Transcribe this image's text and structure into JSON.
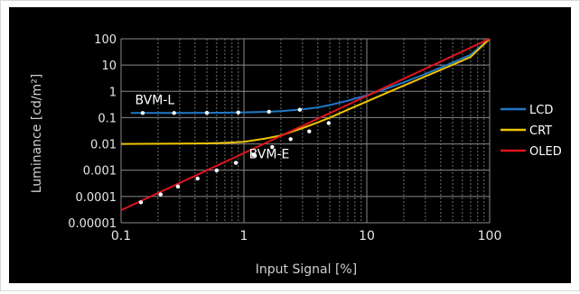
{
  "chart_data": {
    "type": "line",
    "title": "",
    "xlabel": "Input Signal [%]",
    "ylabel": "Luminance [cd/m²]",
    "x_scale": "log",
    "y_scale": "log",
    "xlim": [
      0.1,
      100
    ],
    "ylim": [
      1e-05,
      100
    ],
    "x_ticks": [
      "0.1",
      "1",
      "10",
      "100"
    ],
    "y_ticks": [
      "0.00001",
      "0.0001",
      "0.001",
      "0.01",
      "0.1",
      "1",
      "10",
      "100"
    ],
    "grid": true,
    "legend_position": "right",
    "background_color": "#000000",
    "gridline_color": "#8a8a8a",
    "series": [
      {
        "name": "LCD",
        "color": "#1f78c8",
        "x": [
          0.12,
          0.2,
          0.3,
          0.5,
          0.7,
          1,
          1.5,
          2,
          3,
          4,
          5,
          7,
          10,
          15,
          20,
          30,
          50,
          70,
          100
        ],
        "y": [
          0.15,
          0.15,
          0.151,
          0.152,
          0.154,
          0.158,
          0.166,
          0.176,
          0.205,
          0.245,
          0.3,
          0.44,
          0.71,
          1.35,
          2.2,
          4.6,
          12.5,
          24.5,
          100
        ]
      },
      {
        "name": "CRT",
        "color": "#f0c400",
        "x": [
          0.1,
          0.2,
          0.3,
          0.5,
          0.7,
          1,
          1.5,
          2,
          3,
          4,
          5,
          7,
          10,
          15,
          20,
          30,
          50,
          70,
          100
        ],
        "y": [
          0.01,
          0.0101,
          0.0102,
          0.0105,
          0.011,
          0.012,
          0.016,
          0.021,
          0.04,
          0.066,
          0.1,
          0.2,
          0.41,
          0.93,
          1.65,
          3.7,
          10.3,
          20.2,
          100
        ]
      },
      {
        "name": "OLED",
        "color": "#e0141e",
        "x": [
          0.1,
          100
        ],
        "y": [
          3e-05,
          100
        ]
      }
    ],
    "markers": {
      "color": "#ffffff",
      "points": [
        {
          "x": 0.15,
          "y": 0.15
        },
        {
          "x": 0.27,
          "y": 0.15
        },
        {
          "x": 0.5,
          "y": 0.152
        },
        {
          "x": 0.9,
          "y": 0.157
        },
        {
          "x": 1.6,
          "y": 0.167
        },
        {
          "x": 2.85,
          "y": 0.2
        },
        {
          "x": 0.145,
          "y": 6e-05
        },
        {
          "x": 0.21,
          "y": 0.00012
        },
        {
          "x": 0.29,
          "y": 0.00024
        },
        {
          "x": 0.42,
          "y": 0.00048
        },
        {
          "x": 0.6,
          "y": 0.00098
        },
        {
          "x": 0.86,
          "y": 0.0019
        },
        {
          "x": 1.2,
          "y": 0.0038
        },
        {
          "x": 1.7,
          "y": 0.0076
        },
        {
          "x": 2.4,
          "y": 0.0152
        },
        {
          "x": 3.4,
          "y": 0.03
        },
        {
          "x": 4.9,
          "y": 0.062
        }
      ]
    },
    "annotations": [
      {
        "text": "BVM-L",
        "x": 0.13,
        "y": 0.33
      },
      {
        "text": "BVM-E",
        "x": 1.1,
        "y": 0.0028
      }
    ]
  }
}
